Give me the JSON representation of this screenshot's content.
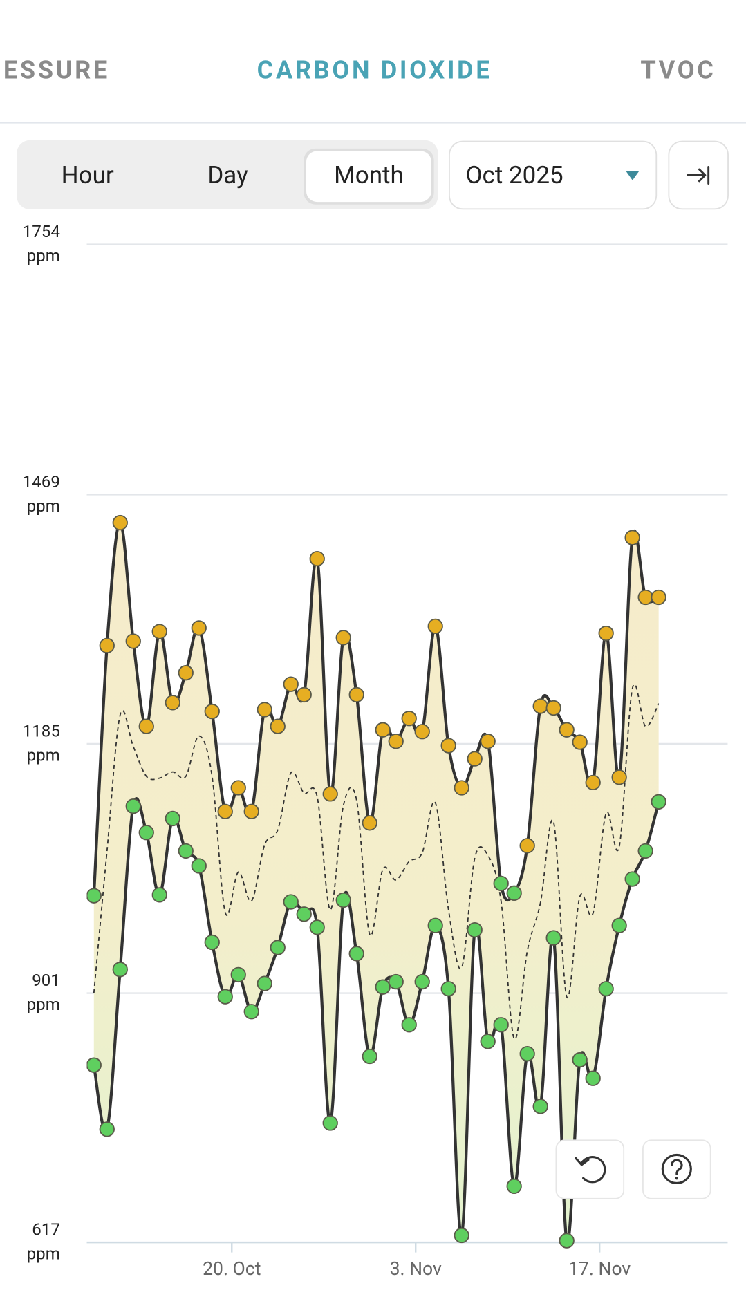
{
  "tabs": [
    "ESSURE",
    "CARBON DIOXIDE",
    "TVOC"
  ],
  "controls": {
    "periods": [
      "Hour",
      "Day",
      "Month"
    ],
    "month_select": "Oct 2025"
  },
  "chart_data": {
    "type": "line",
    "y_unit": "ppm",
    "ylim": [
      617,
      1754
    ],
    "yticks": [
      617,
      901,
      1185,
      1469,
      1754
    ],
    "grid": true,
    "x": [
      "9. Oct",
      "10. Oct",
      "11. Oct",
      "12. Oct",
      "13. Oct",
      "14. Oct",
      "15. Oct",
      "16. Oct",
      "17. Oct",
      "18. Oct",
      "19. Oct",
      "20. Oct",
      "21. Oct",
      "22. Oct",
      "23. Oct",
      "24. Oct",
      "25. Oct",
      "26. Oct",
      "27. Oct",
      "28. Oct",
      "29. Oct",
      "30. Oct",
      "31. Oct",
      "1. Nov",
      "2. Nov",
      "3. Nov",
      "4. Nov",
      "5. Nov",
      "6. Nov",
      "7. Nov",
      "8. Nov",
      "9. Nov",
      "10. Nov",
      "11. Nov",
      "12. Nov",
      "13. Nov",
      "14. Nov",
      "15. Nov",
      "16. Nov",
      "17. Nov",
      "18. Nov",
      "19. Nov",
      "20. Nov",
      "21. Nov"
    ],
    "xticks": [
      "20. Oct",
      "3. Nov",
      "17. Nov"
    ],
    "series": [
      {
        "color": "#333333",
        "values": [
          1012,
          1297,
          1437,
          1302,
          1205,
          1313,
          1232,
          1266,
          1317,
          1222,
          1108,
          1135,
          1108,
          1224,
          1205,
          1253,
          1241,
          1396,
          1128,
          1306,
          1241,
          1095,
          1201,
          1188,
          1214,
          1199,
          1319,
          1183,
          1135,
          1168,
          1188,
          1026,
          1015,
          1069,
          1228,
          1226,
          1201,
          1187,
          1141,
          1311,
          1147,
          1420,
          1352,
          1352
        ],
        "marker_colors": [
          "#5fcf5f",
          "#e6ae22",
          "#e6ae22",
          "#e6ae22",
          "#e6ae22",
          "#e6ae22",
          "#e6ae22",
          "#e6ae22",
          "#e6ae22",
          "#e6ae22",
          "#e6ae22",
          "#e6ae22",
          "#e6ae22",
          "#e6ae22",
          "#e6ae22",
          "#e6ae22",
          "#e6ae22",
          "#e6ae22",
          "#e6ae22",
          "#e6ae22",
          "#e6ae22",
          "#e6ae22",
          "#e6ae22",
          "#e6ae22",
          "#e6ae22",
          "#e6ae22",
          "#e6ae22",
          "#e6ae22",
          "#e6ae22",
          "#e6ae22",
          "#e6ae22",
          "#5fcf5f",
          "#5fcf5f",
          "#e6ae22",
          "#e6ae22",
          "#e6ae22",
          "#e6ae22",
          "#e6ae22",
          "#e6ae22",
          "#e6ae22",
          "#e6ae22",
          "#e6ae22",
          "#e6ae22",
          "#e6ae22"
        ]
      },
      {
        "color": "#333333",
        "values": [
          819,
          746,
          928,
          1114,
          1084,
          1013,
          1100,
          1063,
          1046,
          959,
          897,
          922,
          880,
          912,
          953,
          1005,
          991,
          976,
          753,
          1007,
          946,
          829,
          908,
          914,
          865,
          914,
          978,
          906,
          625,
          973,
          846,
          865,
          681,
          832,
          772,
          964,
          619,
          825,
          804,
          906,
          978,
          1031,
          1063,
          1119
        ],
        "marker_colors": [
          "#5fcf5f",
          "#5fcf5f",
          "#5fcf5f",
          "#5fcf5f",
          "#5fcf5f",
          "#5fcf5f",
          "#5fcf5f",
          "#5fcf5f",
          "#5fcf5f",
          "#5fcf5f",
          "#5fcf5f",
          "#5fcf5f",
          "#5fcf5f",
          "#5fcf5f",
          "#5fcf5f",
          "#5fcf5f",
          "#5fcf5f",
          "#5fcf5f",
          "#5fcf5f",
          "#5fcf5f",
          "#5fcf5f",
          "#5fcf5f",
          "#5fcf5f",
          "#5fcf5f",
          "#5fcf5f",
          "#5fcf5f",
          "#5fcf5f",
          "#5fcf5f",
          "#5fcf5f",
          "#5fcf5f",
          "#5fcf5f",
          "#5fcf5f",
          "#5fcf5f",
          "#5fcf5f",
          "#5fcf5f",
          "#5fcf5f",
          "#5fcf5f",
          "#5fcf5f",
          "#5fcf5f",
          "#5fcf5f",
          "#5fcf5f",
          "#5fcf5f",
          "#5fcf5f",
          "#5fcf5f"
        ]
      },
      {
        "color": "#333333",
        "dashed": true,
        "values": [
          901,
          1063,
          1218,
          1182,
          1148,
          1146,
          1153,
          1148,
          1194,
          1148,
          993,
          1039,
          1006,
          1070,
          1087,
          1152,
          1129,
          1125,
          996,
          1115,
          1121,
          968,
          1042,
          1030,
          1051,
          1061,
          1118,
          996,
          930,
          1055,
          1058,
          1006,
          849,
          949,
          1004,
          1096,
          897,
          1011,
          992,
          1106,
          1068,
          1248,
          1205,
          1231
        ]
      }
    ]
  }
}
